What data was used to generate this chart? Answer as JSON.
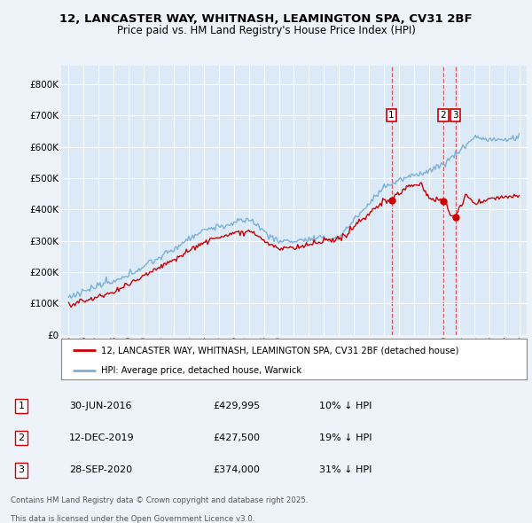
{
  "title1": "12, LANCASTER WAY, WHITNASH, LEAMINGTON SPA, CV31 2BF",
  "title2": "Price paid vs. HM Land Registry's House Price Index (HPI)",
  "background_color": "#eef3fa",
  "plot_bg_color": "#dce9f7",
  "red_line_color": "#cc0000",
  "blue_line_color": "#7ab0d8",
  "yticks": [
    0,
    100000,
    200000,
    300000,
    400000,
    500000,
    600000,
    700000,
    800000
  ],
  "ytick_labels": [
    "£0",
    "£100K",
    "£200K",
    "£300K",
    "£400K",
    "£500K",
    "£600K",
    "£700K",
    "£800K"
  ],
  "xmin": 1994.5,
  "xmax": 2025.5,
  "ymin": 0,
  "ymax": 860000,
  "sales": [
    {
      "num": 1,
      "year": 2016.5,
      "price": 429995,
      "date": "30-JUN-2016",
      "pct": "10%",
      "dir": "↓"
    },
    {
      "num": 2,
      "year": 2019.95,
      "price": 427500,
      "date": "12-DEC-2019",
      "pct": "19%",
      "dir": "↓"
    },
    {
      "num": 3,
      "year": 2020.75,
      "price": 374000,
      "date": "28-SEP-2020",
      "pct": "31%",
      "dir": "↓"
    }
  ],
  "legend_red": "12, LANCASTER WAY, WHITNASH, LEAMINGTON SPA, CV31 2BF (detached house)",
  "legend_blue": "HPI: Average price, detached house, Warwick",
  "footer1": "Contains HM Land Registry data © Crown copyright and database right 2025.",
  "footer2": "This data is licensed under the Open Government Licence v3.0."
}
